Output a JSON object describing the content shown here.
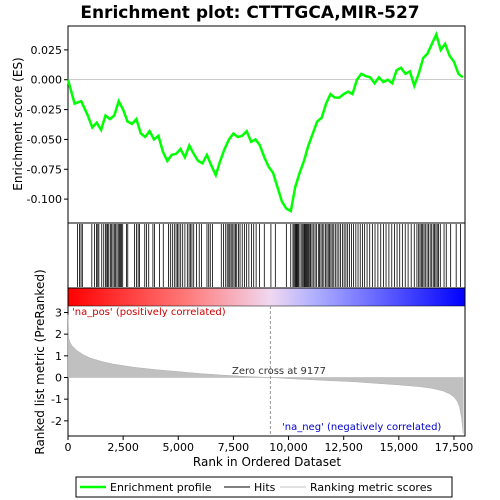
{
  "chart_data": {
    "type": "line",
    "title": "Enrichment plot: CTTTGCA,MIR-527",
    "top_panel": {
      "ylabel": "Enrichment score (ES)",
      "ylim": [
        -0.12,
        0.045
      ],
      "yticks": [
        0.025,
        0.0,
        -0.025,
        -0.05,
        -0.075,
        -0.1
      ],
      "ytick_labels": [
        "0.025",
        "0.000",
        "-0.025",
        "-0.050",
        "-0.075",
        "-0.100"
      ],
      "series": [
        {
          "name": "Enrichment profile",
          "color": "#00ff00",
          "x": [
            0,
            300,
            600,
            900,
            1100,
            1300,
            1500,
            1700,
            1900,
            2100,
            2300,
            2500,
            2700,
            2900,
            3100,
            3300,
            3500,
            3700,
            3900,
            4100,
            4300,
            4500,
            4700,
            4900,
            5100,
            5300,
            5500,
            5700,
            5900,
            6100,
            6300,
            6500,
            6700,
            6900,
            7100,
            7300,
            7500,
            7700,
            7900,
            8100,
            8300,
            8500,
            8700,
            8900,
            9100,
            9300,
            9500,
            9700,
            9900,
            10100,
            10300,
            10500,
            10700,
            10900,
            11100,
            11300,
            11500,
            11700,
            11900,
            12100,
            12300,
            12500,
            12700,
            12900,
            13100,
            13300,
            13500,
            13700,
            13900,
            14100,
            14300,
            14500,
            14700,
            14900,
            15100,
            15300,
            15500,
            15700,
            15900,
            16100,
            16300,
            16500,
            16700,
            16900,
            17100,
            17300,
            17500,
            17700,
            17900
          ],
          "y": [
            0.0,
            -0.02,
            -0.018,
            -0.03,
            -0.04,
            -0.036,
            -0.042,
            -0.03,
            -0.033,
            -0.03,
            -0.018,
            -0.025,
            -0.035,
            -0.037,
            -0.033,
            -0.045,
            -0.048,
            -0.043,
            -0.05,
            -0.047,
            -0.06,
            -0.068,
            -0.063,
            -0.062,
            -0.058,
            -0.065,
            -0.055,
            -0.062,
            -0.068,
            -0.07,
            -0.063,
            -0.072,
            -0.08,
            -0.068,
            -0.058,
            -0.05,
            -0.045,
            -0.048,
            -0.047,
            -0.043,
            -0.052,
            -0.05,
            -0.055,
            -0.065,
            -0.073,
            -0.078,
            -0.09,
            -0.102,
            -0.108,
            -0.11,
            -0.09,
            -0.078,
            -0.068,
            -0.055,
            -0.045,
            -0.035,
            -0.032,
            -0.02,
            -0.012,
            -0.015,
            -0.015,
            -0.012,
            -0.01,
            -0.012,
            0.0,
            0.005,
            0.003,
            0.002,
            -0.003,
            0.002,
            -0.002,
            0.0,
            -0.003,
            0.008,
            0.01,
            0.005,
            0.007,
            -0.005,
            0.005,
            0.018,
            0.022,
            0.03,
            0.038,
            0.025,
            0.03,
            0.02,
            0.015,
            0.005,
            0.002
          ]
        }
      ]
    },
    "hits_panel": {
      "name": "Hits",
      "positions": [
        430,
        520,
        590,
        650,
        1080,
        1200,
        1290,
        1350,
        1400,
        1530,
        1620,
        1700,
        1760,
        1800,
        1850,
        1920,
        1980,
        2040,
        2100,
        2160,
        2220,
        2280,
        2330,
        2380,
        2420,
        2480,
        2650,
        2710,
        3020,
        3110,
        3180,
        3240,
        3480,
        3560,
        3660,
        3850,
        3920,
        4150,
        4320,
        4560,
        4640,
        4730,
        4820,
        4900,
        4960,
        5030,
        5110,
        5200,
        5300,
        5410,
        5490,
        5560,
        5620,
        5700,
        5830,
        5950,
        6050,
        6300,
        6380,
        6450,
        6550,
        6950,
        7050,
        7150,
        7220,
        7290,
        7340,
        7400,
        7470,
        7530,
        7590,
        7650,
        7730,
        7800,
        7900,
        8000,
        8100,
        8200,
        8320,
        8420,
        8530,
        8680,
        8900,
        9200,
        9400,
        9900,
        10100,
        10200,
        10250,
        10300,
        10340,
        10380,
        10420,
        10460,
        10520,
        10600,
        10650,
        10700,
        10740,
        10780,
        10820,
        10860,
        10900,
        10960,
        11000,
        11060,
        11120,
        11200,
        11260,
        11350,
        11400,
        11470,
        11530,
        11600,
        11680,
        11740,
        11800,
        11860,
        11920,
        11980,
        12050,
        12120,
        12200,
        12280,
        12360,
        12440,
        12520,
        12600,
        12680,
        12760,
        12850,
        12950,
        13050,
        13150,
        13250,
        13350,
        13450,
        13560,
        13680,
        13800,
        13920,
        14050,
        14180,
        14300,
        14420,
        14550,
        14680,
        14800,
        14920,
        15040,
        15160,
        15290,
        15420,
        15560,
        15700,
        15820,
        15900,
        15960,
        16020,
        16080,
        16140,
        16200,
        16280,
        16350,
        16420,
        16490,
        16560,
        16620,
        16680,
        16740,
        16800,
        16880,
        17050,
        17150,
        17350,
        17600,
        17800
      ]
    },
    "bottom_panel": {
      "ylabel": "Ranked list metric (PreRanked)",
      "ylim": [
        -2.7,
        3.3
      ],
      "yticks": [
        3,
        2,
        1,
        0,
        -1,
        -2
      ],
      "ytick_labels": [
        "3",
        "2",
        "1",
        "0",
        "-1",
        "-2"
      ],
      "metric_x": [
        0,
        30,
        100,
        200,
        400,
        700,
        1000,
        1500,
        2000,
        3000,
        4000,
        5000,
        6000,
        7000,
        8000,
        9177,
        10000,
        11000,
        12000,
        13000,
        14000,
        15000,
        16000,
        16500,
        17000,
        17300,
        17500,
        17650,
        17750,
        17850,
        17920
      ],
      "metric_y": [
        2.9,
        1.8,
        1.6,
        1.45,
        1.25,
        1.05,
        0.9,
        0.75,
        0.63,
        0.47,
        0.36,
        0.27,
        0.18,
        0.11,
        0.05,
        0.0,
        -0.05,
        -0.1,
        -0.15,
        -0.2,
        -0.27,
        -0.34,
        -0.43,
        -0.5,
        -0.62,
        -0.75,
        -0.9,
        -1.1,
        -1.35,
        -1.9,
        -2.6
      ],
      "zero_cross_label": "Zero cross at 9177",
      "zero_cross": 9177,
      "pos_label": "'na_pos' (positively correlated)",
      "neg_label": "'na_neg' (negatively correlated)"
    },
    "xlabel": "Rank in Ordered Dataset",
    "xlim": [
      0,
      18000
    ],
    "xticks": [
      0,
      2500,
      5000,
      7500,
      10000,
      12500,
      15000,
      17500
    ],
    "xtick_labels": [
      "0",
      "2,500",
      "5,000",
      "7,500",
      "10,000",
      "12,500",
      "15,000",
      "17,500"
    ],
    "legend": [
      "Enrichment profile",
      "Hits",
      "Ranking metric scores"
    ],
    "legend_placement": "bottom"
  },
  "colors": {
    "profile": "#00ff00",
    "hits": "#000000",
    "metric_fill": "#c0c0c0",
    "pos_label": "#cc0000",
    "neg_label": "#0000cc",
    "gradient_pos": "#ff0000",
    "gradient_neg": "#0000ff"
  }
}
